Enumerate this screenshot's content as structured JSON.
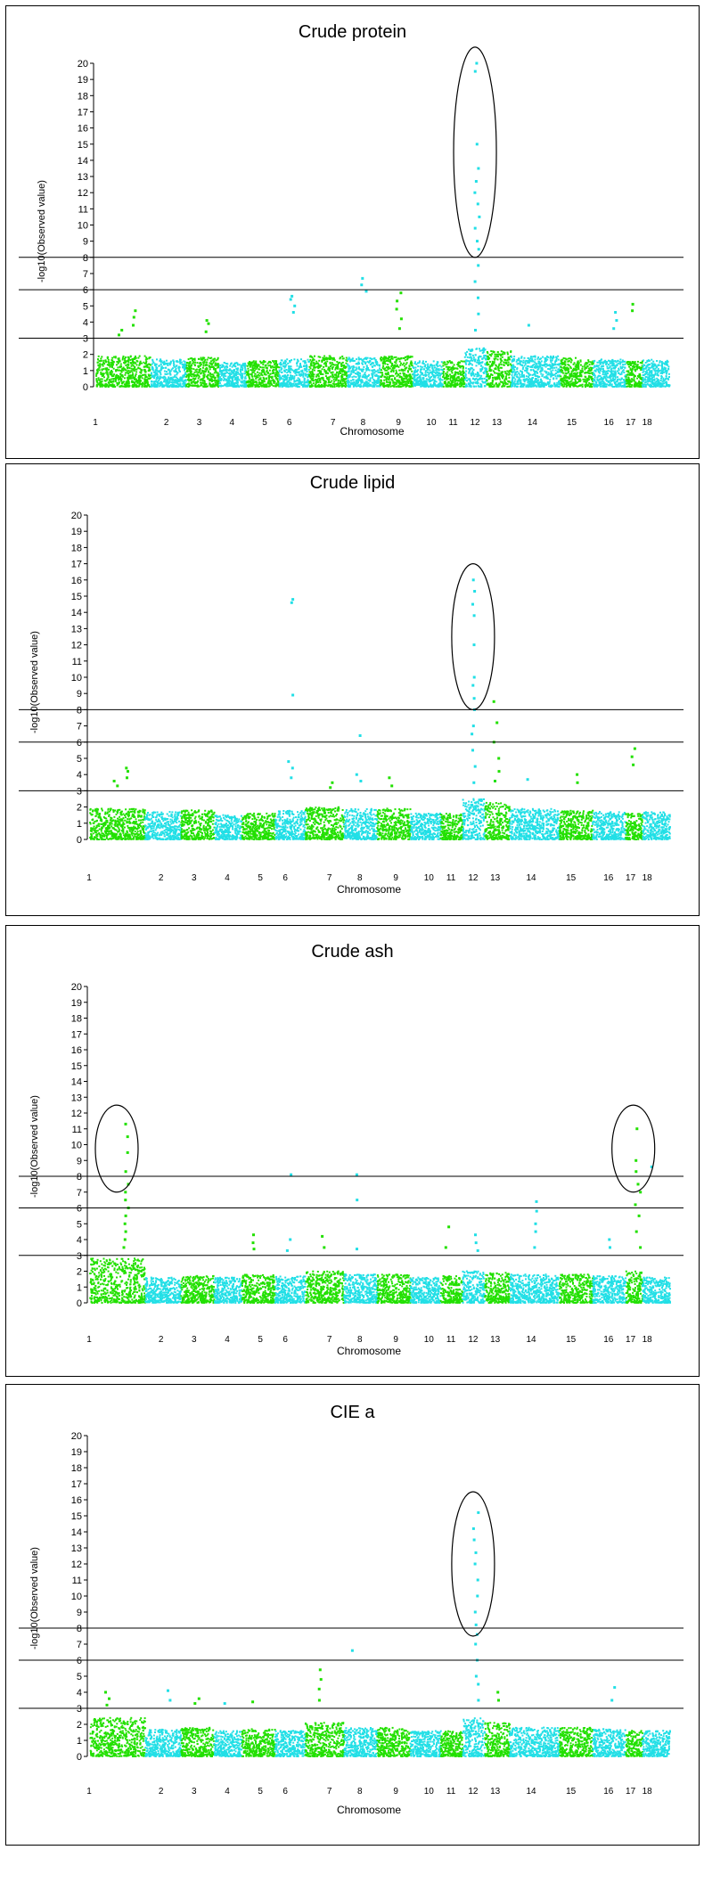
{
  "chart_data": [
    {
      "type": "scatter",
      "title": "Crude protein",
      "xlabel": "Chromosome",
      "ylabel": "-log10(Observed value)",
      "ylim": [
        0,
        20
      ],
      "yticks": [
        0,
        1,
        2,
        3,
        4,
        5,
        6,
        7,
        8,
        9,
        10,
        11,
        12,
        13,
        14,
        15,
        16,
        17,
        18,
        19,
        20
      ],
      "categories": [
        "1",
        "2",
        "3",
        "4",
        "5",
        "6",
        "7",
        "8",
        "9",
        "10",
        "11",
        "12",
        "13",
        "14",
        "15",
        "16",
        "17",
        "18"
      ],
      "thresholds": [
        3,
        6,
        8
      ],
      "base_height": [
        1.9,
        1.7,
        1.8,
        1.5,
        1.6,
        1.7,
        1.9,
        1.8,
        1.9,
        1.6,
        1.6,
        2.4,
        2.2,
        1.9,
        1.8,
        1.7,
        1.6,
        1.7
      ],
      "peaks": [
        {
          "chromosome": "1",
          "values": [
            3.2,
            3.5
          ]
        },
        {
          "chromosome": "1",
          "values": [
            3.8,
            4.3,
            4.7
          ]
        },
        {
          "chromosome": "3",
          "values": [
            3.4,
            3.9,
            4.1
          ]
        },
        {
          "chromosome": "6",
          "values": [
            4.6,
            5.0,
            5.4,
            5.6
          ]
        },
        {
          "chromosome": "8",
          "values": [
            5.9,
            6.3,
            6.7
          ]
        },
        {
          "chromosome": "9",
          "values": [
            3.6,
            4.2,
            4.8,
            5.3,
            5.8
          ]
        },
        {
          "chromosome": "12",
          "values": [
            3.5,
            4.5,
            5.5,
            6.5,
            7.5,
            8.5,
            9.0,
            9.8,
            10.5,
            11.3,
            12.0,
            12.7,
            13.5,
            15.0,
            19.5,
            20.0
          ]
        },
        {
          "chromosome": "14",
          "values": [
            3.8
          ]
        },
        {
          "chromosome": "16",
          "values": [
            3.6,
            4.1,
            4.6
          ]
        },
        {
          "chromosome": "17",
          "values": [
            4.7,
            5.1
          ]
        }
      ],
      "highlight": {
        "chromosome": "12",
        "ymin": 8,
        "ymax": 21
      }
    },
    {
      "type": "scatter",
      "title": "Crude lipid",
      "xlabel": "Chromosome",
      "ylabel": "-log10(Observed value)",
      "ylim": [
        0,
        20
      ],
      "yticks": [
        0,
        1,
        2,
        3,
        4,
        5,
        6,
        7,
        8,
        9,
        10,
        11,
        12,
        13,
        14,
        15,
        16,
        17,
        18,
        19,
        20
      ],
      "categories": [
        "1",
        "2",
        "3",
        "4",
        "5",
        "6",
        "7",
        "8",
        "9",
        "10",
        "11",
        "12",
        "13",
        "14",
        "15",
        "16",
        "17",
        "18"
      ],
      "thresholds": [
        3,
        6,
        8
      ],
      "base_height": [
        1.9,
        1.7,
        1.8,
        1.5,
        1.6,
        1.8,
        2.0,
        1.9,
        1.9,
        1.6,
        1.6,
        2.5,
        2.3,
        1.9,
        1.8,
        1.7,
        1.6,
        1.7
      ],
      "peaks": [
        {
          "chromosome": "1",
          "values": [
            3.3,
            3.6
          ]
        },
        {
          "chromosome": "1",
          "values": [
            3.8,
            4.2,
            4.4
          ]
        },
        {
          "chromosome": "6",
          "values": [
            3.8,
            4.4,
            4.8,
            8.9,
            14.6,
            14.8
          ]
        },
        {
          "chromosome": "7",
          "values": [
            3.2,
            3.5
          ]
        },
        {
          "chromosome": "8",
          "values": [
            3.6,
            4.0,
            6.4
          ]
        },
        {
          "chromosome": "9",
          "values": [
            3.3,
            3.8
          ]
        },
        {
          "chromosome": "12",
          "values": [
            3.5,
            4.5,
            5.5,
            6.5,
            7.0,
            8.0,
            8.7,
            9.5,
            10.0,
            12.0,
            13.8,
            14.5,
            15.3,
            16.0
          ]
        },
        {
          "chromosome": "13",
          "values": [
            3.6,
            4.2,
            5.0,
            6.0,
            7.2,
            8.5
          ]
        },
        {
          "chromosome": "14",
          "values": [
            3.7
          ]
        },
        {
          "chromosome": "15",
          "values": [
            3.5,
            4.0
          ]
        },
        {
          "chromosome": "17",
          "values": [
            4.6,
            5.1,
            5.6
          ]
        }
      ],
      "highlight": {
        "chromosome": "12",
        "ymin": 8,
        "ymax": 17
      }
    },
    {
      "type": "scatter",
      "title": "Crude ash",
      "xlabel": "Chromosome",
      "ylabel": "-log10(Observed value)",
      "ylim": [
        0,
        20
      ],
      "yticks": [
        0,
        1,
        2,
        3,
        4,
        5,
        6,
        7,
        8,
        9,
        10,
        11,
        12,
        13,
        14,
        15,
        16,
        17,
        18,
        19,
        20
      ],
      "categories": [
        "1",
        "2",
        "3",
        "4",
        "5",
        "6",
        "7",
        "8",
        "9",
        "10",
        "11",
        "12",
        "13",
        "14",
        "15",
        "16",
        "17",
        "18"
      ],
      "thresholds": [
        3,
        6,
        8
      ],
      "base_height": [
        2.8,
        1.6,
        1.7,
        1.6,
        1.8,
        1.7,
        2.0,
        1.8,
        1.8,
        1.6,
        1.7,
        2.0,
        1.9,
        1.8,
        1.8,
        1.7,
        2.0,
        1.6
      ],
      "peaks": [
        {
          "chromosome": "1",
          "values": [
            3.5,
            4.0,
            4.5,
            5.0,
            5.5,
            6.0,
            6.5,
            7.0,
            7.5,
            8.3,
            9.5,
            10.5,
            11.3
          ]
        },
        {
          "chromosome": "5",
          "values": [
            3.4,
            3.8,
            4.3
          ]
        },
        {
          "chromosome": "6",
          "values": [
            3.3,
            4.0,
            8.1
          ]
        },
        {
          "chromosome": "7",
          "values": [
            3.5,
            4.2
          ]
        },
        {
          "chromosome": "8",
          "values": [
            3.4,
            6.5,
            8.1
          ]
        },
        {
          "chromosome": "11",
          "values": [
            3.5,
            4.8
          ]
        },
        {
          "chromosome": "12",
          "values": [
            3.3,
            3.8,
            4.3
          ]
        },
        {
          "chromosome": "14",
          "values": [
            3.5,
            4.5,
            5.0,
            5.8,
            6.4
          ]
        },
        {
          "chromosome": "16",
          "values": [
            3.5,
            4.0
          ]
        },
        {
          "chromosome": "17",
          "values": [
            3.5,
            4.5,
            5.5,
            6.2,
            7.0,
            7.5,
            8.3,
            9.0,
            11.0
          ]
        },
        {
          "chromosome": "18",
          "values": [
            8.6
          ]
        }
      ],
      "highlight": [
        {
          "chromosome": "1",
          "ymin": 7,
          "ymax": 12.5
        },
        {
          "chromosome": "17",
          "ymin": 7,
          "ymax": 12.5
        }
      ]
    },
    {
      "type": "scatter",
      "title": "CIE a",
      "xlabel": "Chromosome",
      "ylabel": "-log10(Observed value)",
      "ylim": [
        0,
        20
      ],
      "yticks": [
        0,
        1,
        2,
        3,
        4,
        5,
        6,
        7,
        8,
        9,
        10,
        11,
        12,
        13,
        14,
        15,
        16,
        17,
        18,
        19,
        20
      ],
      "categories": [
        "1",
        "2",
        "3",
        "4",
        "5",
        "6",
        "7",
        "8",
        "9",
        "10",
        "11",
        "12",
        "13",
        "14",
        "15",
        "16",
        "17",
        "18"
      ],
      "thresholds": [
        3,
        6,
        8
      ],
      "base_height": [
        2.4,
        1.7,
        1.8,
        1.6,
        1.7,
        1.6,
        2.1,
        1.8,
        1.8,
        1.6,
        1.6,
        2.4,
        2.1,
        1.8,
        1.8,
        1.7,
        1.6,
        1.6
      ],
      "peaks": [
        {
          "chromosome": "1",
          "values": [
            3.2,
            3.6,
            4.0
          ]
        },
        {
          "chromosome": "2",
          "values": [
            3.5,
            4.1
          ]
        },
        {
          "chromosome": "3",
          "values": [
            3.3,
            3.6
          ]
        },
        {
          "chromosome": "4",
          "values": [
            3.3
          ]
        },
        {
          "chromosome": "5",
          "values": [
            3.4
          ]
        },
        {
          "chromosome": "7",
          "values": [
            3.5,
            4.2,
            4.8,
            5.4
          ]
        },
        {
          "chromosome": "8",
          "values": [
            6.6
          ]
        },
        {
          "chromosome": "12",
          "values": [
            3.5,
            4.5,
            5.0,
            6.0,
            7.0,
            7.6,
            8.2,
            9.0,
            10.0,
            11.0,
            12.0,
            12.7,
            13.5,
            14.2,
            15.2
          ]
        },
        {
          "chromosome": "13",
          "values": [
            3.5,
            4.0
          ]
        },
        {
          "chromosome": "16",
          "values": [
            3.5,
            4.3
          ]
        }
      ],
      "highlight": {
        "chromosome": "12",
        "ymin": 7.5,
        "ymax": 16.5
      }
    }
  ]
}
